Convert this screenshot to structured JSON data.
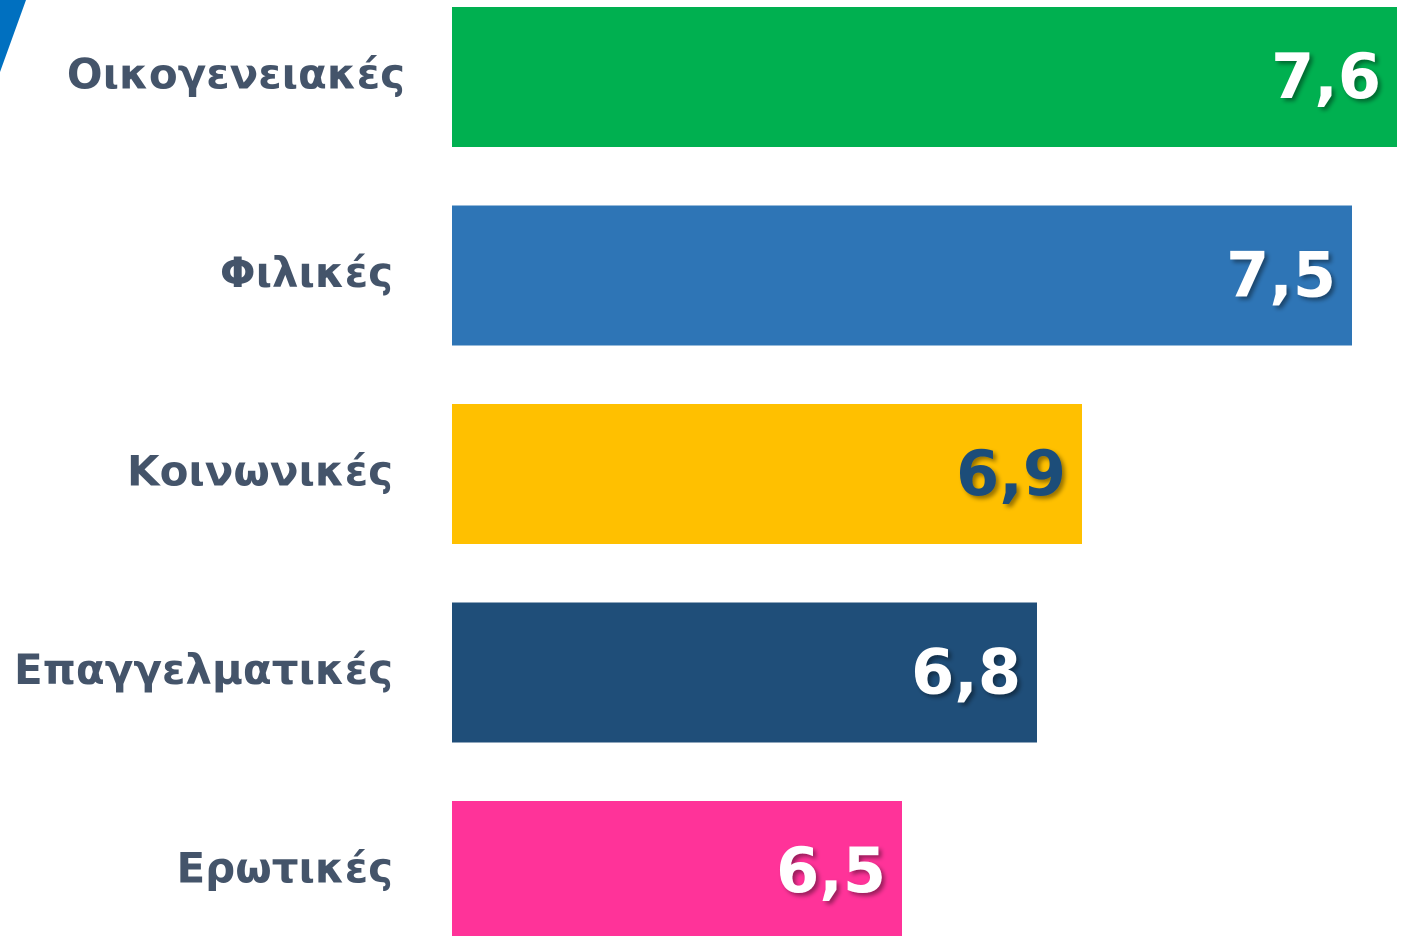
{
  "chart_data": {
    "type": "bar",
    "orientation": "horizontal",
    "categories": [
      "Οικογενειακές",
      "Φιλικές",
      "Κοινωνικές",
      "Επαγγελματικές",
      "Ερωτικές"
    ],
    "values": [
      7.6,
      7.5,
      6.9,
      6.8,
      6.5
    ],
    "value_labels": [
      "7,6",
      "7,5",
      "6,9",
      "6,8",
      "6,5"
    ],
    "colors": [
      "#00b050",
      "#2e75b6",
      "#ffc000",
      "#1f4e79",
      "#ff3399"
    ],
    "value_label_colors": [
      "#ffffff",
      "#ffffff",
      "#1f4e79",
      "#ffffff",
      "#ffffff"
    ],
    "xlim": [
      5.5,
      7.6
    ]
  }
}
